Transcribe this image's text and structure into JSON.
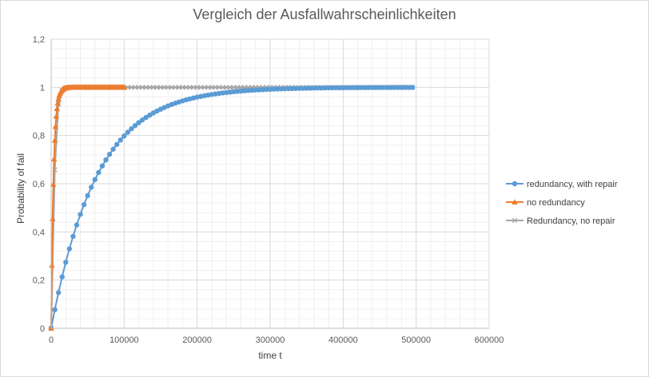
{
  "chart_data": {
    "type": "scatter",
    "title": "Vergleich der Ausfallwahrscheinlichkeiten",
    "xlabel": "time t",
    "ylabel": "Probability of fail",
    "xlim": [
      0,
      600000
    ],
    "ylim": [
      0,
      1.2
    ],
    "x_ticks": [
      "0",
      "100000",
      "200000",
      "300000",
      "400000",
      "500000",
      "600000"
    ],
    "y_ticks": [
      "0",
      "0,2",
      "0,4",
      "0,6",
      "0,8",
      "1",
      "1,2"
    ],
    "grid": true,
    "legend_position": "right",
    "series": [
      {
        "name": "redundancy, with repair",
        "color": "#5b9bd5",
        "marker": "circle",
        "x_start": 0,
        "x_step": 5000,
        "x_end": 495000,
        "rate": 1.6e-05
      },
      {
        "name": "no redundancy",
        "color": "#ed7d31",
        "marker": "triangle",
        "x_start": 0,
        "x_step": 1000,
        "x_end": 100000,
        "rate": 0.00031
      },
      {
        "name": "Redundancy, no repair",
        "color": "#a5a5a5",
        "marker": "x",
        "x_start": 0,
        "x_step": 5000,
        "x_end": 495000,
        "rate": 0.0004
      }
    ]
  }
}
